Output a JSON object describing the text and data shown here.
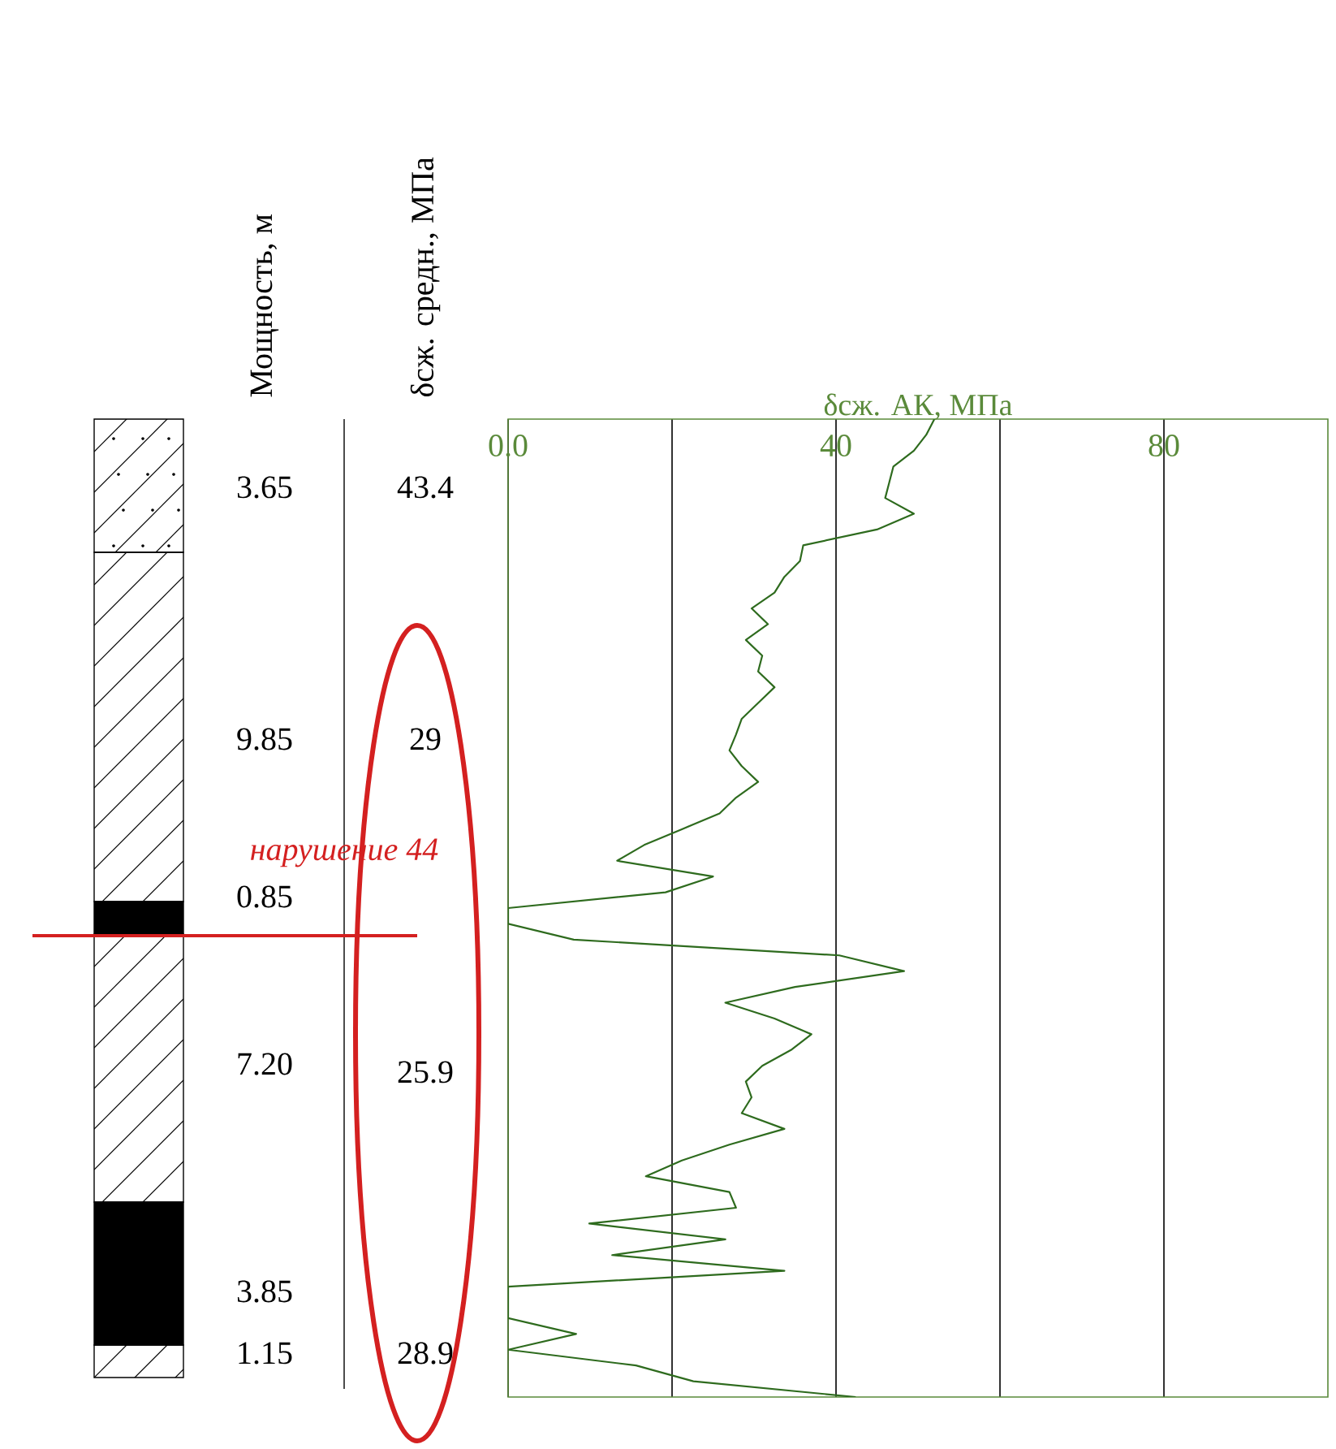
{
  "chart_data": {
    "type": "line",
    "orientation": "horizontal",
    "xlabel": "δсж. АК, МПа",
    "xlim": [
      0,
      100
    ],
    "xticks": [
      {
        "value": 0,
        "label": "0.0"
      },
      {
        "value": 20,
        "label": null
      },
      40,
      {
        "value": 60,
        "label": null
      },
      80
    ],
    "grid": "x",
    "categories": [
      null,
      null,
      null,
      null,
      null,
      null,
      null,
      null,
      null,
      null,
      null,
      null,
      null,
      null,
      null,
      null,
      null,
      null,
      null,
      null,
      null,
      null,
      null,
      null,
      null,
      null,
      null,
      null,
      null,
      null,
      null,
      null,
      null,
      null,
      null,
      null,
      null,
      null,
      null,
      null,
      null,
      null,
      null,
      null,
      null,
      null,
      null,
      null,
      null,
      null,
      null,
      null,
      null,
      null,
      null,
      null,
      null,
      null,
      null,
      null,
      null,
      null,
      null
    ],
    "series": [
      {
        "color": "#2e6b1e",
        "values": [
          52,
          51,
          49.5,
          47,
          46.5,
          46,
          49.5,
          45,
          36,
          35.6,
          33.7,
          32.5,
          29.7,
          31.7,
          29,
          31,
          30.5,
          32.5,
          30.5,
          28.5,
          27.8,
          27,
          28.5,
          30.5,
          27.8,
          25.8,
          21.2,
          16.6,
          13.3,
          25,
          19.2,
          0,
          0,
          8,
          40.4,
          48.3,
          35,
          26.5,
          32.5,
          37,
          34.5,
          31,
          29,
          29.7,
          28.5,
          33.7,
          27,
          21.2,
          16.8,
          27,
          27.8,
          9.9,
          26.5,
          12.7,
          33.7,
          0,
          0,
          0,
          8.3,
          0,
          15.6,
          22.6,
          42.4
        ]
      }
    ],
    "annotations": [
      "Мощность, м",
      "δсж. средн., МПа",
      "3.65",
      "9.85",
      "0.85",
      "7.20",
      "3.85",
      "1.15",
      "43.4",
      "29",
      "25.9",
      "28.9",
      "нарушение 44"
    ]
  }
}
